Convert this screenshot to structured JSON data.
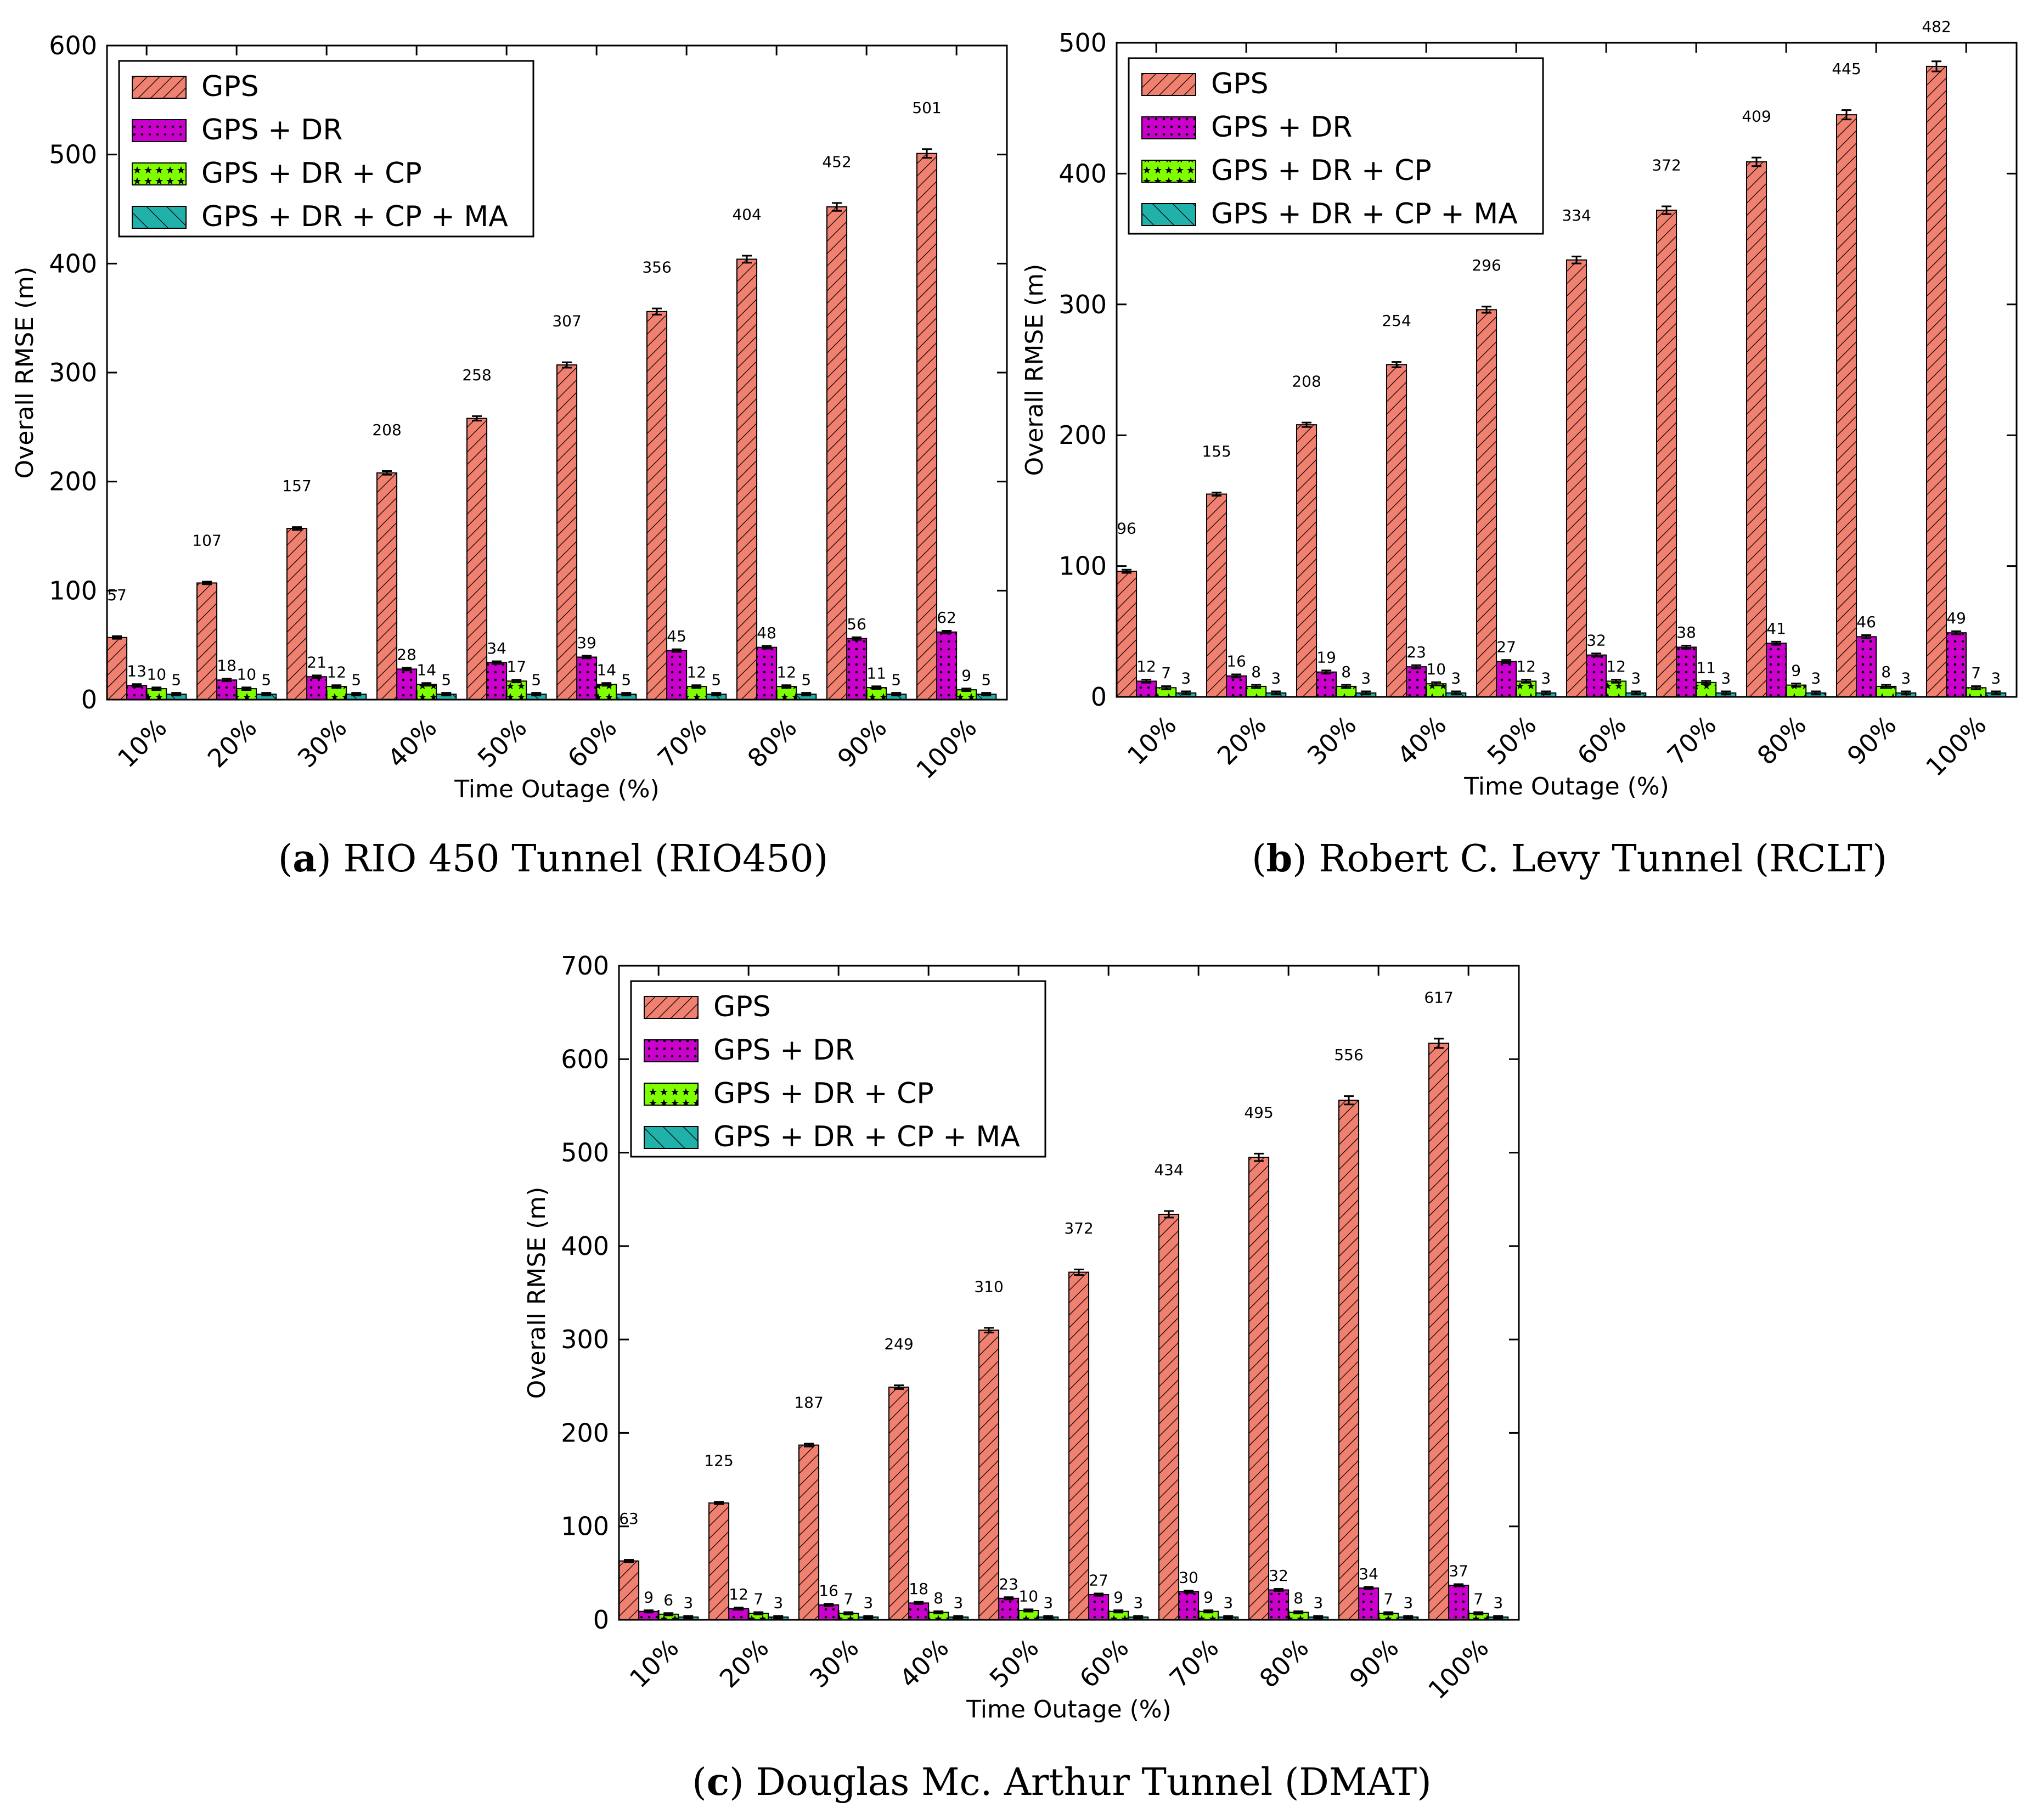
{
  "colors": {
    "GPS": "#f08070",
    "GPS + DR": "#cc00cc",
    "GPS + DR + CP": "#7fff00",
    "GPS + DR + CP + MA": "#20b2aa"
  },
  "captions": [
    {
      "letter": "a",
      "text": "RIO 450 Tunnel (RIO450)"
    },
    {
      "letter": "b",
      "text": "Robert C. Levy Tunnel (RCLT)"
    },
    {
      "letter": "c",
      "text": "Douglas Mc. Arthur Tunnel (DMAT)"
    }
  ],
  "chart_data": [
    {
      "type": "bar",
      "title": "",
      "xlabel": "Time Outage (%)",
      "ylabel": "Overall RMSE (m)",
      "ylim": [
        0,
        600
      ],
      "yticks": [
        0,
        100,
        200,
        300,
        400,
        500,
        600
      ],
      "legend_position": "top-left",
      "categories": [
        "10%",
        "20%",
        "30%",
        "40%",
        "50%",
        "60%",
        "70%",
        "80%",
        "90%",
        "100%"
      ],
      "series": [
        {
          "name": "GPS",
          "values": [
            57,
            107,
            157,
            208,
            258,
            307,
            356,
            404,
            452,
            501
          ]
        },
        {
          "name": "GPS + DR",
          "values": [
            13,
            18,
            21,
            28,
            34,
            39,
            45,
            48,
            56,
            62
          ]
        },
        {
          "name": "GPS + DR + CP",
          "values": [
            10,
            10,
            12,
            14,
            17,
            14,
            12,
            12,
            11,
            9
          ]
        },
        {
          "name": "GPS + DR + CP + MA",
          "values": [
            5,
            5,
            5,
            5,
            5,
            5,
            5,
            5,
            5,
            5
          ]
        }
      ]
    },
    {
      "type": "bar",
      "title": "",
      "xlabel": "Time Outage (%)",
      "ylabel": "Overall RMSE (m)",
      "ylim": [
        0,
        500
      ],
      "yticks": [
        0,
        100,
        200,
        300,
        400,
        500
      ],
      "legend_position": "top-left",
      "categories": [
        "10%",
        "20%",
        "30%",
        "40%",
        "50%",
        "60%",
        "70%",
        "80%",
        "90%",
        "100%"
      ],
      "series": [
        {
          "name": "GPS",
          "values": [
            96,
            155,
            208,
            254,
            296,
            334,
            372,
            409,
            445,
            482
          ]
        },
        {
          "name": "GPS + DR",
          "values": [
            12,
            16,
            19,
            23,
            27,
            32,
            38,
            41,
            46,
            49
          ]
        },
        {
          "name": "GPS + DR + CP",
          "values": [
            7,
            8,
            8,
            10,
            12,
            12,
            11,
            9,
            8,
            7
          ]
        },
        {
          "name": "GPS + DR + CP + MA",
          "values": [
            3,
            3,
            3,
            3,
            3,
            3,
            3,
            3,
            3,
            3
          ]
        }
      ]
    },
    {
      "type": "bar",
      "title": "",
      "xlabel": "Time Outage (%)",
      "ylabel": "Overall RMSE (m)",
      "ylim": [
        0,
        700
      ],
      "yticks": [
        0,
        100,
        200,
        300,
        400,
        500,
        600,
        700
      ],
      "legend_position": "top-left",
      "categories": [
        "10%",
        "20%",
        "30%",
        "40%",
        "50%",
        "60%",
        "70%",
        "80%",
        "90%",
        "100%"
      ],
      "series": [
        {
          "name": "GPS",
          "values": [
            63,
            125,
            187,
            249,
            310,
            372,
            434,
            495,
            556,
            617
          ]
        },
        {
          "name": "GPS + DR",
          "values": [
            9,
            12,
            16,
            18,
            23,
            27,
            30,
            32,
            34,
            37
          ]
        },
        {
          "name": "GPS + DR + CP",
          "values": [
            6,
            7,
            7,
            8,
            10,
            9,
            9,
            8,
            7,
            7
          ]
        },
        {
          "name": "GPS + DR + CP + MA",
          "values": [
            3,
            3,
            3,
            3,
            3,
            3,
            3,
            3,
            3,
            3
          ]
        }
      ]
    }
  ]
}
